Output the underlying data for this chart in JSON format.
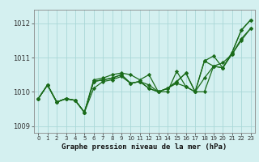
{
  "xlabel": "Graphe pression niveau de la mer (hPa)",
  "x": [
    0,
    1,
    2,
    3,
    4,
    5,
    6,
    7,
    8,
    9,
    10,
    11,
    12,
    13,
    14,
    15,
    16,
    17,
    18,
    19,
    20,
    21,
    22,
    23
  ],
  "line1": [
    1009.8,
    1010.2,
    1009.7,
    1009.8,
    1009.75,
    1009.4,
    1010.3,
    1010.35,
    1010.4,
    1010.5,
    1010.25,
    1010.3,
    1010.1,
    1010.0,
    1010.1,
    1010.25,
    1010.15,
    1010.0,
    1010.0,
    1010.75,
    1010.85,
    1011.1,
    1011.55,
    1011.85
  ],
  "line2": [
    1009.8,
    1010.2,
    1009.7,
    1009.8,
    1009.75,
    1009.4,
    1010.35,
    1010.4,
    1010.5,
    1010.55,
    1010.5,
    1010.35,
    1010.5,
    1010.0,
    1010.0,
    1010.6,
    1010.15,
    1010.0,
    1010.9,
    1011.05,
    1010.7,
    1011.15,
    1011.8,
    1012.1
  ],
  "line3": [
    1009.8,
    1010.2,
    1009.7,
    1009.8,
    1009.75,
    1009.4,
    1010.3,
    1010.35,
    1010.4,
    1010.5,
    1010.25,
    1010.3,
    1010.1,
    1010.0,
    1010.1,
    1010.3,
    1010.55,
    1010.0,
    1010.9,
    1010.75,
    1010.7,
    1011.15,
    1011.8,
    1012.1
  ],
  "line4": [
    1009.8,
    1010.2,
    1009.7,
    1009.8,
    1009.75,
    1009.4,
    1010.1,
    1010.3,
    1010.35,
    1010.45,
    1010.25,
    1010.3,
    1010.2,
    1010.0,
    1010.1,
    1010.3,
    1010.55,
    1010.0,
    1010.4,
    1010.75,
    1010.7,
    1011.1,
    1011.5,
    1011.85
  ],
  "line_color": "#1a6b1a",
  "bg_color": "#d4f0f0",
  "grid_color": "#aad8d8",
  "ylim": [
    1008.8,
    1012.4
  ],
  "yticks": [
    1009,
    1010,
    1011,
    1012
  ],
  "xticks": [
    0,
    1,
    2,
    3,
    4,
    5,
    6,
    7,
    8,
    9,
    10,
    11,
    12,
    13,
    14,
    15,
    16,
    17,
    18,
    19,
    20,
    21,
    22,
    23
  ],
  "marker": "D",
  "markersize": 2.2,
  "linewidth": 0.9
}
